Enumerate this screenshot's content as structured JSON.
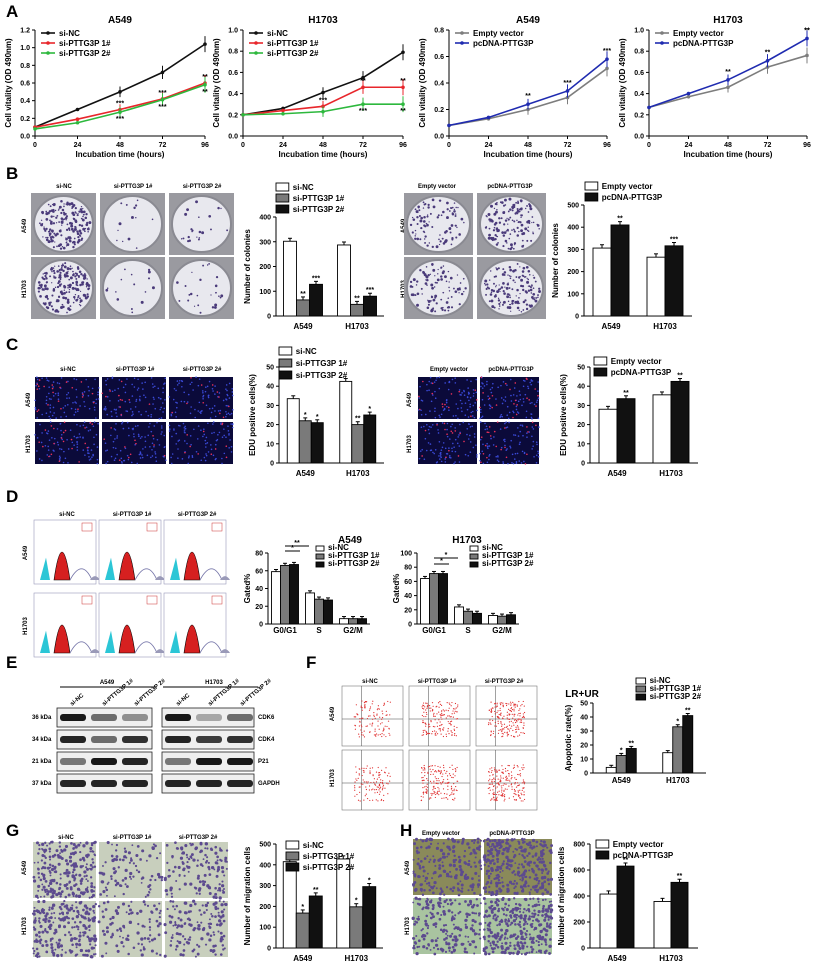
{
  "panel_letters": [
    "A",
    "B",
    "C",
    "D",
    "E",
    "F",
    "G",
    "H"
  ],
  "colors": {
    "black": "#111111",
    "red": "#e8262b",
    "green": "#2db83d",
    "gray": "#7d7d7d",
    "blue": "#1f2bb0",
    "bar_white": "#ffffff",
    "bar_gray": "#7a7a7a",
    "bar_black": "#111111",
    "purple": "#5c4a8f",
    "red_fill": "#d62020",
    "cyan": "#2bc6d6"
  },
  "images": {
    "B_left_cols": [
      "si-NC",
      "si-PTTG3P 1#",
      "si-PTTG3P 2#"
    ],
    "B_right_cols": [
      "Empty vector",
      "pcDNA-PTTG3P"
    ],
    "rows": [
      "A549",
      "H1703"
    ],
    "C_left_cols": [
      "si-NC",
      "si-PTTG3P 1#",
      "si-PTTG3P 2#"
    ],
    "C_right_cols": [
      "Empty vector",
      "pcDNA-PTTG3P"
    ],
    "D_cols": [
      "si-NC",
      "si-PTTG3P 1#",
      "si-PTTG3P 2#"
    ],
    "F_cols": [
      "si-NC",
      "si-PTTG3P 1#",
      "si-PTTG3P 2#"
    ],
    "G_cols": [
      "si-NC",
      "si-PTTG3P 1#",
      "si-PTTG3P 2#"
    ],
    "H_cols": [
      "Empty vector",
      "pcDNA-PTTG3P"
    ]
  },
  "western": {
    "group_labels": [
      "A549",
      "H1703"
    ],
    "lane_labels": [
      "si-NC",
      "si-PTTG3P 1#",
      "si-PTTG3P 2#",
      "si-NC",
      "si-PTTG3P 1#",
      "si-PTTG3P 2#"
    ],
    "kda": [
      "36 kDa",
      "34 kDa",
      "21 kDa",
      "37 kDa"
    ],
    "proteins": [
      "CDK6",
      "CDK4",
      "P21",
      "GAPDH"
    ]
  },
  "chart_data": [
    {
      "id": "A1",
      "type": "line",
      "title": "A549",
      "xlabel": "Incubation time (hours)",
      "ylabel": "Cell vitality (OD 490nm)",
      "x": [
        0,
        24,
        48,
        72,
        96
      ],
      "xticks": [
        "0",
        "24",
        "48",
        "72",
        "96"
      ],
      "ylim": [
        0,
        1.2
      ],
      "yticks": [
        "0.0",
        "0.2",
        "0.4",
        "0.6",
        "0.8",
        "1.0",
        "1.2"
      ],
      "series": [
        {
          "name": "si-NC",
          "color": "#111111",
          "values": [
            0.1,
            0.3,
            0.5,
            0.72,
            1.04
          ]
        },
        {
          "name": "si-PTTG3P 1#",
          "color": "#e8262b",
          "values": [
            0.1,
            0.19,
            0.3,
            0.42,
            0.6
          ]
        },
        {
          "name": "si-PTTG3P 2#",
          "color": "#2db83d",
          "values": [
            0.08,
            0.15,
            0.27,
            0.41,
            0.58
          ]
        }
      ],
      "annotations": [
        "**",
        "**",
        "***",
        "***",
        "***",
        "***"
      ]
    },
    {
      "id": "A2",
      "type": "line",
      "title": "H1703",
      "xlabel": "Incubation time (hours)",
      "ylabel": "Cell vitality (OD 490nm)",
      "x": [
        0,
        24,
        48,
        72,
        96
      ],
      "xticks": [
        "0",
        "24",
        "48",
        "72",
        "96"
      ],
      "ylim": [
        0,
        1.0
      ],
      "yticks": [
        "0.0",
        "0.2",
        "0.4",
        "0.6",
        "0.8",
        "1.0"
      ],
      "series": [
        {
          "name": "si-NC",
          "color": "#111111",
          "values": [
            0.2,
            0.26,
            0.41,
            0.55,
            0.79
          ]
        },
        {
          "name": "si-PTTG3P 1#",
          "color": "#e8262b",
          "values": [
            0.2,
            0.24,
            0.28,
            0.46,
            0.46
          ]
        },
        {
          "name": "si-PTTG3P 2#",
          "color": "#2db83d",
          "values": [
            0.2,
            0.21,
            0.23,
            0.3,
            0.3
          ]
        }
      ],
      "annotations": [
        "**",
        "**",
        "**",
        "***",
        "***"
      ]
    },
    {
      "id": "A3",
      "type": "line",
      "title": "A549",
      "xlabel": "Incubation time (hours)",
      "ylabel": "Cell vitality (OD 490nm)",
      "x": [
        0,
        24,
        48,
        72,
        96
      ],
      "xticks": [
        "0",
        "24",
        "48",
        "72",
        "96"
      ],
      "ylim": [
        0,
        0.8
      ],
      "yticks": [
        "0.0",
        "0.2",
        "0.4",
        "0.6",
        "0.8"
      ],
      "series": [
        {
          "name": "Empty vector",
          "color": "#7d7d7d",
          "values": [
            0.08,
            0.13,
            0.2,
            0.29,
            0.51
          ]
        },
        {
          "name": "pcDNA-PTTG3P",
          "color": "#1f2bb0",
          "values": [
            0.08,
            0.14,
            0.24,
            0.34,
            0.58
          ]
        }
      ],
      "annotations": [
        "***",
        "***",
        "**"
      ]
    },
    {
      "id": "A4",
      "type": "line",
      "title": "H1703",
      "xlabel": "Incubation time (hours)",
      "ylabel": "Cell vitality (OD 490nm)",
      "x": [
        0,
        24,
        48,
        72,
        96
      ],
      "xticks": [
        "0",
        "24",
        "48",
        "72",
        "96"
      ],
      "ylim": [
        0,
        1.0
      ],
      "yticks": [
        "0.0",
        "0.2",
        "0.4",
        "0.6",
        "0.8",
        "1.0"
      ],
      "series": [
        {
          "name": "Empty vector",
          "color": "#7d7d7d",
          "values": [
            0.27,
            0.37,
            0.46,
            0.65,
            0.76
          ]
        },
        {
          "name": "pcDNA-PTTG3P",
          "color": "#1f2bb0",
          "values": [
            0.27,
            0.4,
            0.53,
            0.71,
            0.92
          ]
        }
      ],
      "annotations": [
        "**",
        "**",
        "**",
        "**"
      ]
    },
    {
      "id": "B1",
      "type": "bar",
      "ylabel": "Number of colonies",
      "categories": [
        "A549",
        "H1703"
      ],
      "ylim": [
        0,
        400
      ],
      "yticks": [
        "0",
        "100",
        "200",
        "300",
        "400"
      ],
      "series": [
        {
          "name": "si-NC",
          "values": [
            302,
            287
          ]
        },
        {
          "name": "si-PTTG3P 1#",
          "values": [
            65,
            47
          ]
        },
        {
          "name": "si-PTTG3P 2#",
          "values": [
            128,
            80
          ]
        }
      ],
      "annotations": [
        "**",
        "***",
        "**",
        "***"
      ]
    },
    {
      "id": "B2",
      "type": "bar",
      "ylabel": "Number of colonies",
      "categories": [
        "A549",
        "H1703"
      ],
      "ylim": [
        0,
        500
      ],
      "yticks": [
        "0",
        "100",
        "200",
        "300",
        "400",
        "500"
      ],
      "series": [
        {
          "name": "Empty vector",
          "values": [
            306,
            265
          ]
        },
        {
          "name": "pcDNA-PTTG3P",
          "values": [
            410,
            316
          ]
        }
      ],
      "annotations": [
        "**",
        "***"
      ]
    },
    {
      "id": "C1",
      "type": "bar",
      "ylabel": "EDU positive cells(%)",
      "categories": [
        "A549",
        "H1703"
      ],
      "ylim": [
        0,
        50
      ],
      "yticks": [
        "0",
        "10",
        "20",
        "30",
        "40",
        "50"
      ],
      "series": [
        {
          "name": "si-NC",
          "values": [
            33.5,
            42.5
          ]
        },
        {
          "name": "si-PTTG3P 1#",
          "values": [
            22,
            20
          ]
        },
        {
          "name": "si-PTTG3P 2#",
          "values": [
            21,
            25
          ]
        }
      ],
      "annotations": [
        "*",
        "*",
        "**",
        "*"
      ]
    },
    {
      "id": "C2",
      "type": "bar",
      "ylabel": "EDU positive cells(%)",
      "categories": [
        "A549",
        "H1703"
      ],
      "ylim": [
        0,
        50
      ],
      "yticks": [
        "0",
        "10",
        "20",
        "30",
        "40",
        "50"
      ],
      "series": [
        {
          "name": "Empty vector",
          "values": [
            28,
            35.5
          ]
        },
        {
          "name": "pcDNA-PTTG3P",
          "values": [
            33.5,
            42.5
          ]
        }
      ],
      "annotations": [
        "**",
        "**"
      ]
    },
    {
      "id": "D1",
      "type": "bar",
      "title": "A549",
      "ylabel": "Gated%",
      "categories": [
        "G0/G1",
        "S",
        "G2/M"
      ],
      "ylim": [
        0,
        80
      ],
      "yticks": [
        "0",
        "20",
        "40",
        "60",
        "80"
      ],
      "series": [
        {
          "name": "si-NC",
          "values": [
            59,
            35,
            6
          ]
        },
        {
          "name": "si-PTTG3P 1#",
          "values": [
            66,
            28,
            6
          ]
        },
        {
          "name": "si-PTTG3P 2#",
          "values": [
            67,
            27,
            6
          ]
        }
      ],
      "annotations": [
        "*",
        "**"
      ]
    },
    {
      "id": "D2",
      "type": "bar",
      "title": "H1703",
      "ylabel": "Gated%",
      "categories": [
        "G0/G1",
        "S",
        "G2/M"
      ],
      "ylim": [
        0,
        100
      ],
      "yticks": [
        "0",
        "20",
        "40",
        "60",
        "80",
        "100"
      ],
      "series": [
        {
          "name": "si-NC",
          "values": [
            64,
            24,
            12
          ]
        },
        {
          "name": "si-PTTG3P 1#",
          "values": [
            71,
            18,
            11
          ]
        },
        {
          "name": "si-PTTG3P 2#",
          "values": [
            71,
            15,
            13
          ]
        }
      ],
      "annotations": [
        "*",
        "*"
      ]
    },
    {
      "id": "F1",
      "type": "bar",
      "title": "LR+UR",
      "ylabel": "Apoptotic rate(%)",
      "categories": [
        "A549",
        "H1703"
      ],
      "ylim": [
        0,
        50
      ],
      "yticks": [
        "0",
        "10",
        "20",
        "30",
        "40",
        "50"
      ],
      "series": [
        {
          "name": "si-NC",
          "values": [
            4,
            14.5
          ]
        },
        {
          "name": "si-PTTG3P 1#",
          "values": [
            12.5,
            33
          ]
        },
        {
          "name": "si-PTTG3P 2#",
          "values": [
            17.5,
            41
          ]
        }
      ],
      "annotations": [
        "*",
        "**",
        "*",
        "**"
      ]
    },
    {
      "id": "G1",
      "type": "bar",
      "ylabel": "Number of migration cells",
      "categories": [
        "A549",
        "H1703"
      ],
      "ylim": [
        0,
        500
      ],
      "yticks": [
        "0",
        "100",
        "200",
        "300",
        "400",
        "500"
      ],
      "series": [
        {
          "name": "si-NC",
          "values": [
            415,
            428
          ]
        },
        {
          "name": "si-PTTG3P 1#",
          "values": [
            168,
            198
          ]
        },
        {
          "name": "si-PTTG3P 2#",
          "values": [
            250,
            295
          ]
        }
      ],
      "annotations": [
        "*",
        "**",
        "*",
        "*"
      ]
    },
    {
      "id": "H1",
      "type": "bar",
      "ylabel": "Number of migration cells",
      "categories": [
        "A549",
        "H1703"
      ],
      "ylim": [
        0,
        800
      ],
      "yticks": [
        "0",
        "200",
        "400",
        "600",
        "800"
      ],
      "series": [
        {
          "name": "Empty vector",
          "values": [
            415,
            358
          ]
        },
        {
          "name": "pcDNA-PTTG3P",
          "values": [
            630,
            505
          ]
        }
      ],
      "annotations": [
        "**",
        "**"
      ]
    }
  ]
}
